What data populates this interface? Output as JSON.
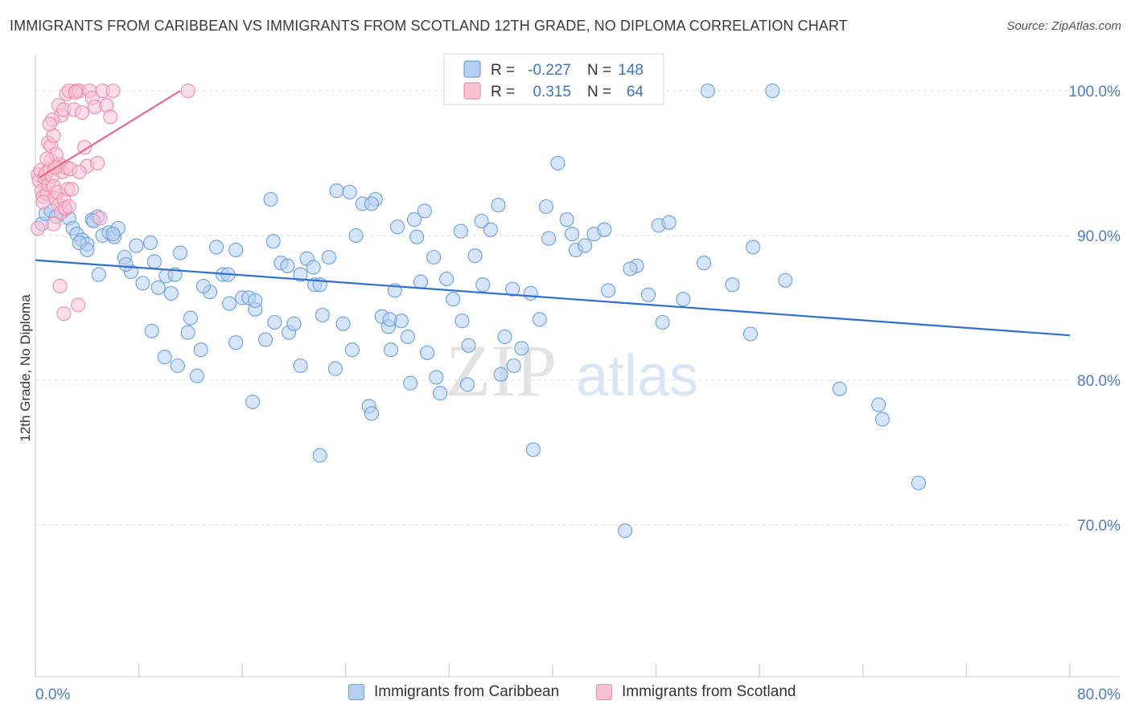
{
  "title": "IMMIGRANTS FROM CARIBBEAN VS IMMIGRANTS FROM SCOTLAND 12TH GRADE, NO DIPLOMA CORRELATION CHART",
  "source": "Source: ZipAtlas.com",
  "watermark": {
    "zip": "ZIP",
    "atlas": "atlas"
  },
  "colors": {
    "blue": "#6a9fe0",
    "blue_fill": "#b7d0f2",
    "blue_line": "#2e6fd0",
    "pink": "#f08aab",
    "pink_fill": "#f7c3d3",
    "pink_line": "#e8688f",
    "grid": "#dddddd",
    "tick_text": "#4a7cc7"
  },
  "legend": {
    "rows": [
      {
        "r_label": "R =",
        "r_value": "-0.227",
        "n_label": "N =",
        "n_value": "148"
      },
      {
        "r_label": "R =",
        "r_value": "0.315",
        "n_label": "N =",
        "n_value": "64"
      }
    ]
  },
  "bottom_legend": {
    "caribbean": "Immigrants from Caribbean",
    "scotland": "Immigrants from Scotland"
  },
  "chart_data": {
    "type": "scatter",
    "title": "IMMIGRANTS FROM CARIBBEAN VS IMMIGRANTS FROM SCOTLAND 12TH GRADE, NO DIPLOMA CORRELATION CHART",
    "xlabel": "",
    "ylabel": "12th Grade, No Diploma",
    "xlim": [
      0,
      80
    ],
    "ylim": [
      59.5,
      102.5
    ],
    "x_tick_labels": [
      "0.0%",
      "80.0%"
    ],
    "y_ticks": [
      70,
      80,
      90,
      100
    ],
    "y_tick_labels": [
      "70.0%",
      "80.0%",
      "90.0%",
      "100.0%"
    ],
    "grid": true,
    "legend_placement": "top-center",
    "series": [
      {
        "name": "Immigrants from Caribbean",
        "color": "#6a9fe0",
        "r": -0.227,
        "n": 148,
        "trend": {
          "x": [
            0,
            80
          ],
          "y": [
            88.3,
            83.1
          ]
        },
        "points": [
          [
            0.5,
            90.8
          ],
          [
            0.8,
            91.5
          ],
          [
            1.2,
            91.7
          ],
          [
            1.6,
            91.3
          ],
          [
            2.0,
            91.6
          ],
          [
            2.3,
            91.8
          ],
          [
            2.6,
            91.2
          ],
          [
            2.9,
            90.5
          ],
          [
            3.2,
            90.1
          ],
          [
            3.6,
            89.7
          ],
          [
            4.0,
            89.4
          ],
          [
            4.4,
            91.1
          ],
          [
            4.8,
            91.3
          ],
          [
            5.2,
            90.0
          ],
          [
            5.7,
            90.2
          ],
          [
            6.1,
            89.9
          ],
          [
            6.4,
            90.5
          ],
          [
            6.9,
            88.5
          ],
          [
            7.4,
            87.5
          ],
          [
            7.8,
            89.3
          ],
          [
            8.3,
            86.7
          ],
          [
            8.9,
            89.5
          ],
          [
            9.5,
            86.4
          ],
          [
            10.1,
            87.2
          ],
          [
            10.5,
            86.0
          ],
          [
            11.2,
            88.8
          ],
          [
            3.4,
            89.5
          ],
          [
            4.0,
            89.0
          ],
          [
            4.9,
            87.3
          ],
          [
            7.0,
            88.0
          ],
          [
            9.2,
            88.2
          ],
          [
            10.8,
            87.3
          ],
          [
            12.0,
            84.3
          ],
          [
            12.8,
            82.1
          ],
          [
            13.5,
            86.1
          ],
          [
            14.0,
            89.2
          ],
          [
            14.5,
            87.3
          ],
          [
            15.0,
            85.3
          ],
          [
            15.5,
            89.0
          ],
          [
            16.0,
            85.7
          ],
          [
            16.5,
            85.7
          ],
          [
            17.0,
            84.9
          ],
          [
            17.8,
            82.8
          ],
          [
            18.4,
            89.6
          ],
          [
            19.0,
            88.1
          ],
          [
            19.6,
            83.3
          ],
          [
            20.0,
            83.9
          ],
          [
            20.5,
            87.3
          ],
          [
            21.0,
            88.4
          ],
          [
            21.6,
            86.6
          ],
          [
            22.2,
            84.5
          ],
          [
            22.7,
            88.5
          ],
          [
            23.3,
            93.1
          ],
          [
            23.8,
            83.9
          ],
          [
            24.3,
            93.0
          ],
          [
            24.8,
            90.0
          ],
          [
            25.3,
            92.2
          ],
          [
            25.8,
            78.2
          ],
          [
            26.3,
            92.5
          ],
          [
            26.8,
            84.4
          ],
          [
            27.3,
            83.7
          ],
          [
            27.8,
            86.2
          ],
          [
            28.3,
            84.1
          ],
          [
            28.8,
            83.0
          ],
          [
            29.3,
            91.1
          ],
          [
            29.8,
            86.8
          ],
          [
            30.3,
            81.9
          ],
          [
            30.8,
            88.5
          ],
          [
            31.3,
            79.1
          ],
          [
            31.8,
            87.0
          ],
          [
            32.3,
            85.6
          ],
          [
            32.9,
            90.3
          ],
          [
            33.4,
            79.7
          ],
          [
            34.0,
            88.6
          ],
          [
            34.6,
            86.6
          ],
          [
            35.2,
            90.4
          ],
          [
            35.8,
            92.1
          ],
          [
            36.3,
            83.0
          ],
          [
            36.9,
            86.3
          ],
          [
            37.6,
            82.2
          ],
          [
            38.3,
            86.0
          ],
          [
            39.0,
            84.2
          ],
          [
            39.7,
            89.8
          ],
          [
            40.4,
            95.0
          ],
          [
            41.1,
            91.1
          ],
          [
            41.8,
            89.0
          ],
          [
            42.5,
            89.3
          ],
          [
            43.2,
            90.1
          ],
          [
            44.3,
            86.2
          ],
          [
            45.6,
            69.6
          ],
          [
            46.5,
            87.9
          ],
          [
            47.4,
            85.9
          ],
          [
            48.2,
            90.7
          ],
          [
            49.0,
            90.9
          ],
          [
            50.1,
            85.6
          ],
          [
            51.7,
            88.1
          ],
          [
            53.9,
            86.6
          ],
          [
            55.3,
            83.2
          ],
          [
            55.5,
            89.2
          ],
          [
            58.0,
            86.9
          ],
          [
            62.2,
            79.4
          ],
          [
            65.2,
            78.3
          ],
          [
            65.5,
            77.3
          ],
          [
            68.3,
            72.9
          ],
          [
            52.0,
            100.0
          ],
          [
            57.0,
            100.0
          ],
          [
            4.5,
            91.0
          ],
          [
            6.0,
            90.1
          ],
          [
            13.0,
            86.5
          ],
          [
            15.5,
            82.6
          ],
          [
            17.0,
            85.5
          ],
          [
            22.0,
            86.6
          ],
          [
            26.0,
            92.2
          ],
          [
            28.0,
            90.6
          ],
          [
            29.5,
            89.9
          ],
          [
            33.0,
            84.1
          ],
          [
            34.5,
            91.0
          ],
          [
            39.5,
            92.0
          ],
          [
            41.5,
            90.1
          ],
          [
            44.0,
            90.4
          ],
          [
            46.0,
            87.7
          ],
          [
            48.5,
            84.0
          ],
          [
            18.5,
            84.0
          ],
          [
            20.5,
            81.0
          ],
          [
            21.5,
            87.8
          ],
          [
            23.2,
            80.8
          ],
          [
            24.5,
            82.1
          ],
          [
            26.0,
            77.7
          ],
          [
            27.5,
            82.1
          ],
          [
            29.0,
            79.8
          ],
          [
            31.0,
            80.2
          ],
          [
            33.5,
            82.4
          ],
          [
            36.0,
            80.4
          ],
          [
            37.0,
            81.0
          ],
          [
            38.5,
            75.2
          ],
          [
            22.0,
            74.8
          ],
          [
            11.0,
            81.0
          ],
          [
            12.5,
            80.3
          ],
          [
            10.0,
            81.6
          ],
          [
            9.0,
            83.4
          ],
          [
            11.8,
            83.3
          ],
          [
            14.9,
            87.3
          ],
          [
            16.8,
            78.5
          ],
          [
            18.2,
            92.5
          ],
          [
            19.5,
            87.9
          ],
          [
            27.4,
            84.2
          ],
          [
            30.1,
            91.7
          ]
        ]
      },
      {
        "name": "Immigrants from Scotland",
        "color": "#f08aab",
        "r": 0.315,
        "n": 64,
        "trend": {
          "x": [
            0.3,
            11.2
          ],
          "y": [
            94.0,
            100.0
          ]
        },
        "points": [
          [
            0.2,
            94.2
          ],
          [
            0.3,
            93.8
          ],
          [
            0.4,
            94.5
          ],
          [
            0.5,
            93.1
          ],
          [
            0.6,
            92.7
          ],
          [
            0.7,
            94.0
          ],
          [
            0.8,
            94.3
          ],
          [
            0.9,
            92.9
          ],
          [
            1.0,
            93.5
          ],
          [
            1.1,
            94.6
          ],
          [
            1.2,
            95.2
          ],
          [
            1.3,
            94.1
          ],
          [
            1.4,
            93.4
          ],
          [
            1.5,
            92.6
          ],
          [
            1.6,
            94.8
          ],
          [
            1.7,
            93.0
          ],
          [
            1.8,
            92.1
          ],
          [
            1.9,
            94.9
          ],
          [
            2.0,
            91.6
          ],
          [
            2.1,
            94.4
          ],
          [
            2.2,
            92.5
          ],
          [
            2.3,
            91.9
          ],
          [
            2.4,
            94.7
          ],
          [
            2.5,
            93.2
          ],
          [
            2.6,
            92.0
          ],
          [
            1.0,
            96.4
          ],
          [
            1.2,
            96.2
          ],
          [
            1.4,
            96.9
          ],
          [
            1.6,
            95.6
          ],
          [
            1.8,
            99.0
          ],
          [
            2.0,
            98.3
          ],
          [
            2.2,
            98.7
          ],
          [
            2.4,
            99.8
          ],
          [
            2.6,
            100.0
          ],
          [
            3.0,
            98.7
          ],
          [
            3.2,
            100.0
          ],
          [
            3.4,
            100.0
          ],
          [
            3.6,
            98.5
          ],
          [
            3.8,
            96.1
          ],
          [
            4.0,
            94.8
          ],
          [
            4.2,
            100.0
          ],
          [
            4.4,
            99.5
          ],
          [
            4.6,
            98.9
          ],
          [
            4.8,
            95.0
          ],
          [
            5.0,
            91.2
          ],
          [
            5.2,
            100.0
          ],
          [
            5.5,
            99.0
          ],
          [
            5.8,
            98.2
          ],
          [
            6.0,
            100.0
          ],
          [
            11.8,
            100.0
          ],
          [
            1.3,
            98.0
          ],
          [
            1.5,
            94.7
          ],
          [
            2.7,
            94.6
          ],
          [
            3.1,
            99.9
          ],
          [
            0.2,
            90.5
          ],
          [
            1.9,
            86.5
          ],
          [
            2.2,
            84.6
          ],
          [
            3.3,
            85.2
          ],
          [
            1.4,
            90.8
          ],
          [
            0.6,
            92.3
          ],
          [
            2.8,
            93.2
          ],
          [
            3.4,
            94.4
          ],
          [
            0.9,
            95.3
          ],
          [
            1.1,
            97.7
          ]
        ]
      }
    ]
  }
}
